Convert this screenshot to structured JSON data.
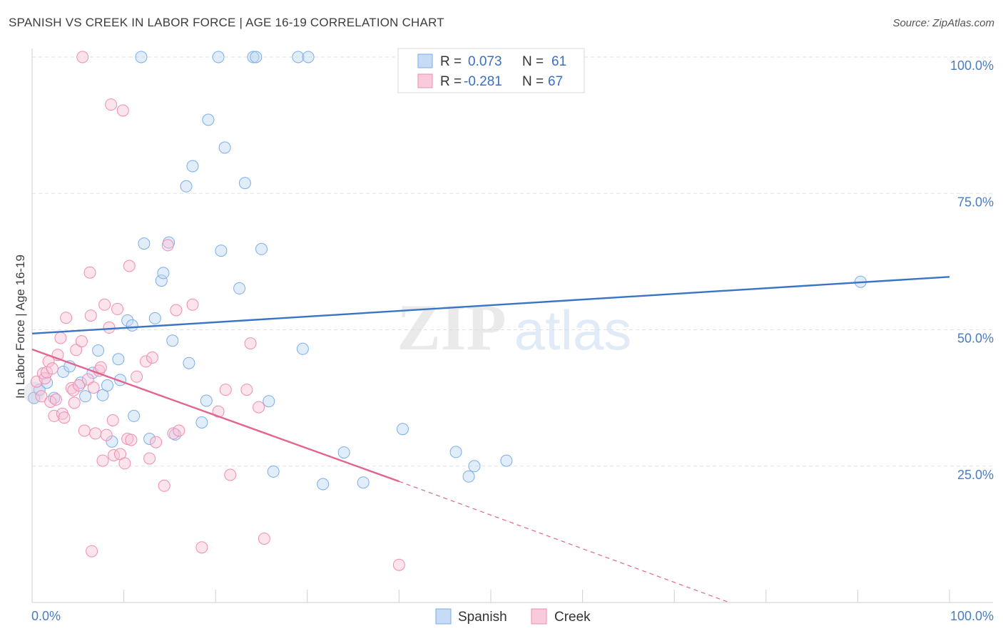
{
  "header": {
    "title": "SPANISH VS CREEK IN LABOR FORCE | AGE 16-19 CORRELATION CHART",
    "source": "Source: ZipAtlas.com"
  },
  "watermark": {
    "zip": "ZIP",
    "atlas": "atlas"
  },
  "legend": {
    "r_label": "R =",
    "n_label": "N =",
    "entries": [
      {
        "name": "Spanish",
        "r": "0.073",
        "n": "61",
        "color": "#7aaee8"
      },
      {
        "name": "Creek",
        "r": "-0.281",
        "n": "67",
        "color": "#f08db0"
      }
    ]
  },
  "chart_data": {
    "type": "scatter",
    "title": "SPANISH VS CREEK IN LABOR FORCE | AGE 16-19 CORRELATION CHART",
    "xlabel": "",
    "ylabel": "In Labor Force | Age 16-19",
    "xlim": [
      0,
      100
    ],
    "ylim": [
      0,
      105
    ],
    "x_tick_labels": [
      {
        "value": 0,
        "label": "0.0%"
      },
      {
        "value": 100,
        "label": "100.0%"
      }
    ],
    "y_tick_labels": [
      {
        "value": 25,
        "label": "25.0%"
      },
      {
        "value": 50,
        "label": "50.0%"
      },
      {
        "value": 75,
        "label": "75.0%"
      },
      {
        "value": 100,
        "label": "100.0%"
      }
    ],
    "grid": true,
    "legend_position": "top-center",
    "series": [
      {
        "name": "Spanish",
        "color": "#7aaee8",
        "line_color": "#3a74c8",
        "trend": {
          "x": [
            0,
            100
          ],
          "y": [
            49.3,
            59.7
          ]
        },
        "points": [
          [
            0.2,
            37.5
          ],
          [
            0.8,
            39.0
          ],
          [
            1.6,
            40.3
          ],
          [
            2.4,
            37.5
          ],
          [
            3.4,
            42.3
          ],
          [
            4.1,
            43.3
          ],
          [
            5.3,
            40.3
          ],
          [
            5.8,
            37.8
          ],
          [
            6.6,
            42.1
          ],
          [
            7.2,
            46.2
          ],
          [
            7.7,
            38.0
          ],
          [
            8.2,
            39.8
          ],
          [
            8.7,
            29.5
          ],
          [
            9.4,
            44.6
          ],
          [
            9.6,
            40.8
          ],
          [
            10.4,
            51.7
          ],
          [
            10.9,
            50.8
          ],
          [
            11.1,
            34.2
          ],
          [
            11.9,
            100.0
          ],
          [
            12.2,
            65.8
          ],
          [
            12.8,
            30.0
          ],
          [
            13.4,
            52.1
          ],
          [
            14.1,
            59.0
          ],
          [
            14.3,
            60.4
          ],
          [
            14.9,
            66.0
          ],
          [
            15.3,
            48.0
          ],
          [
            15.6,
            30.8
          ],
          [
            16.8,
            76.3
          ],
          [
            17.1,
            43.9
          ],
          [
            17.5,
            80.0
          ],
          [
            18.5,
            33.0
          ],
          [
            19.0,
            37.0
          ],
          [
            19.2,
            88.5
          ],
          [
            20.3,
            100.0
          ],
          [
            20.6,
            64.5
          ],
          [
            21.0,
            83.4
          ],
          [
            22.6,
            57.6
          ],
          [
            23.2,
            76.9
          ],
          [
            24.1,
            100.0
          ],
          [
            24.4,
            100.0
          ],
          [
            25.0,
            64.8
          ],
          [
            25.8,
            36.9
          ],
          [
            26.3,
            24.0
          ],
          [
            29.0,
            100.0
          ],
          [
            29.5,
            46.5
          ],
          [
            30.1,
            100.0
          ],
          [
            31.7,
            21.7
          ],
          [
            34.0,
            27.5
          ],
          [
            36.1,
            22.0
          ],
          [
            40.4,
            31.8
          ],
          [
            46.2,
            27.6
          ],
          [
            47.6,
            23.1
          ],
          [
            48.2,
            25.0
          ],
          [
            51.7,
            26.0
          ],
          [
            90.3,
            58.8
          ]
        ]
      },
      {
        "name": "Creek",
        "color": "#f08db0",
        "line_color": "#e26490",
        "trend": {
          "x": [
            0,
            40
          ],
          "y": [
            46.4,
            22.2
          ]
        },
        "trend_extension": {
          "x": [
            40,
            76
          ],
          "y": [
            22.2,
            0
          ]
        },
        "points": [
          [
            0.5,
            40.5
          ],
          [
            1.0,
            37.8
          ],
          [
            1.2,
            42.0
          ],
          [
            1.4,
            41.1
          ],
          [
            1.6,
            42.2
          ],
          [
            1.8,
            44.2
          ],
          [
            2.0,
            36.8
          ],
          [
            2.2,
            42.9
          ],
          [
            2.4,
            34.2
          ],
          [
            2.6,
            37.2
          ],
          [
            2.8,
            45.4
          ],
          [
            3.1,
            48.5
          ],
          [
            3.3,
            34.6
          ],
          [
            3.5,
            33.9
          ],
          [
            3.7,
            52.2
          ],
          [
            4.3,
            39.3
          ],
          [
            4.5,
            38.9
          ],
          [
            4.6,
            36.6
          ],
          [
            4.8,
            46.3
          ],
          [
            5.1,
            39.8
          ],
          [
            5.4,
            47.9
          ],
          [
            5.5,
            100.0
          ],
          [
            5.7,
            31.5
          ],
          [
            6.1,
            40.9
          ],
          [
            6.3,
            60.5
          ],
          [
            6.4,
            52.6
          ],
          [
            6.5,
            9.4
          ],
          [
            6.7,
            39.4
          ],
          [
            6.9,
            31.0
          ],
          [
            7.3,
            42.5
          ],
          [
            7.5,
            43.1
          ],
          [
            7.7,
            26.0
          ],
          [
            7.9,
            54.6
          ],
          [
            8.1,
            30.7
          ],
          [
            8.4,
            50.4
          ],
          [
            8.6,
            91.3
          ],
          [
            8.8,
            33.4
          ],
          [
            8.9,
            27.0
          ],
          [
            9.3,
            53.8
          ],
          [
            9.6,
            27.2
          ],
          [
            9.9,
            90.2
          ],
          [
            10.1,
            25.5
          ],
          [
            10.4,
            30.0
          ],
          [
            10.6,
            61.7
          ],
          [
            10.8,
            29.8
          ],
          [
            11.4,
            41.4
          ],
          [
            12.4,
            44.2
          ],
          [
            12.8,
            26.4
          ],
          [
            13.1,
            44.9
          ],
          [
            13.5,
            29.4
          ],
          [
            14.4,
            21.4
          ],
          [
            14.8,
            65.5
          ],
          [
            15.4,
            31.0
          ],
          [
            15.7,
            53.6
          ],
          [
            16.0,
            31.5
          ],
          [
            17.5,
            54.6
          ],
          [
            18.5,
            10.1
          ],
          [
            20.3,
            35.0
          ],
          [
            21.1,
            39.0
          ],
          [
            21.6,
            23.4
          ],
          [
            23.4,
            39.0
          ],
          [
            23.8,
            47.5
          ],
          [
            24.7,
            35.8
          ],
          [
            25.3,
            11.7
          ],
          [
            40.0,
            6.9
          ]
        ]
      }
    ]
  }
}
